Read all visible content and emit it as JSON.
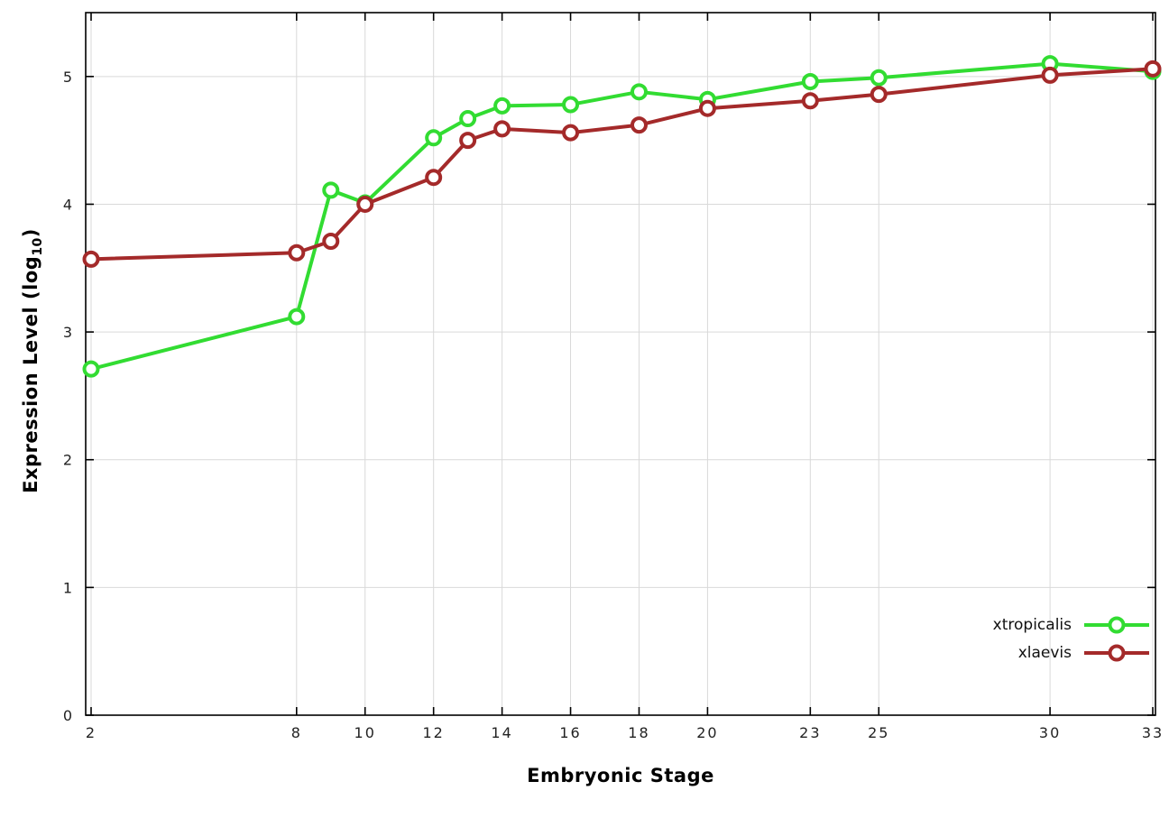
{
  "chart_data": {
    "type": "line",
    "title": "",
    "xlabel": "Embryonic Stage",
    "ylabel": "Expression Level (log10)",
    "ylabel_text": "Expression Level (log",
    "ylabel_sub": "10",
    "ylabel_suffix": ")",
    "x_ticks": [
      2,
      8,
      10,
      12,
      14,
      16,
      18,
      20,
      23,
      25,
      30,
      33
    ],
    "y_ticks": [
      0,
      1,
      2,
      3,
      4,
      5
    ],
    "xlim": [
      2,
      33
    ],
    "ylim": [
      0,
      5.5
    ],
    "grid": true,
    "grid_color": "#d9d9d9",
    "border_color": "#000000",
    "background_color": "#ffffff",
    "legend_position": "bottom-right-inside",
    "x": [
      2,
      8,
      9,
      10,
      12,
      13,
      14,
      16,
      18,
      20,
      23,
      25,
      30,
      33
    ],
    "series": [
      {
        "name": "xtropicalis",
        "color": "#32dc32",
        "values": [
          2.71,
          3.12,
          4.11,
          4.01,
          4.52,
          4.67,
          4.77,
          4.78,
          4.88,
          4.82,
          4.96,
          4.99,
          5.1,
          5.04
        ]
      },
      {
        "name": "xlaevis",
        "color": "#a42a2a",
        "values": [
          3.57,
          3.62,
          3.71,
          4.0,
          4.21,
          4.5,
          4.59,
          4.56,
          4.62,
          4.75,
          4.81,
          4.86,
          5.01,
          5.06
        ]
      }
    ]
  }
}
